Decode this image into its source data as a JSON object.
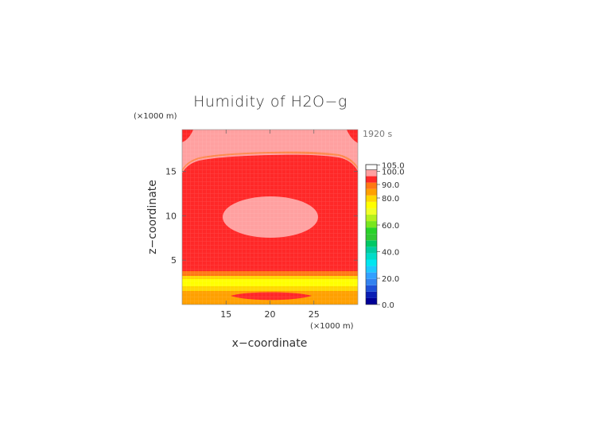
{
  "chart_data": {
    "type": "heatmap",
    "title": "Humidity of H2O−g",
    "xlabel": "x−coordinate",
    "ylabel": "z−coordinate",
    "x_unit": "(×1000 m)",
    "y_unit": "(×1000 m)",
    "time_label": "1920 s",
    "xlim": [
      10,
      30
    ],
    "ylim": [
      0,
      19.7
    ],
    "x_ticks": [
      15,
      20,
      25
    ],
    "y_ticks": [
      5,
      10,
      15
    ],
    "colorbar": {
      "ticks": [
        "0.0",
        "20.0",
        "40.0",
        "60.0",
        "80.0",
        "90.0",
        "100.0",
        "105.0"
      ],
      "levels": [
        {
          "from": 0,
          "to": 5,
          "color": "#000096"
        },
        {
          "from": 5,
          "to": 10,
          "color": "#0a1eb4"
        },
        {
          "from": 10,
          "to": 15,
          "color": "#1e50d7"
        },
        {
          "from": 15,
          "to": 20,
          "color": "#3282f0"
        },
        {
          "from": 20,
          "to": 25,
          "color": "#32a0ff"
        },
        {
          "from": 25,
          "to": 30,
          "color": "#1ec8ff"
        },
        {
          "from": 30,
          "to": 35,
          "color": "#00e6f0"
        },
        {
          "from": 35,
          "to": 40,
          "color": "#00dcc8"
        },
        {
          "from": 40,
          "to": 45,
          "color": "#00cca0"
        },
        {
          "from": 45,
          "to": 50,
          "color": "#00c864"
        },
        {
          "from": 50,
          "to": 55,
          "color": "#32c832"
        },
        {
          "from": 55,
          "to": 60,
          "color": "#28d228"
        },
        {
          "from": 60,
          "to": 65,
          "color": "#78e61e"
        },
        {
          "from": 65,
          "to": 70,
          "color": "#b4f01e"
        },
        {
          "from": 70,
          "to": 75,
          "color": "#f0ff28"
        },
        {
          "from": 75,
          "to": 80,
          "color": "#ffff00"
        },
        {
          "from": 80,
          "to": 85,
          "color": "#ffd700"
        },
        {
          "from": 85,
          "to": 90,
          "color": "#ffa000"
        },
        {
          "from": 90,
          "to": 95,
          "color": "#ff7814"
        },
        {
          "from": 95,
          "to": 100,
          "color": "#ff2828"
        },
        {
          "from": 100,
          "to": 105,
          "color": "#ffa0a0"
        }
      ],
      "over_color": "#ffffff"
    },
    "field_description_colors": {
      "background": "#ff2828",
      "saturated": "#ffa0a0",
      "layer_low": "#ffa000",
      "layer_mid": "#ffd700",
      "layer_high": "#ffff00",
      "layer_top": "#ff7814"
    }
  }
}
